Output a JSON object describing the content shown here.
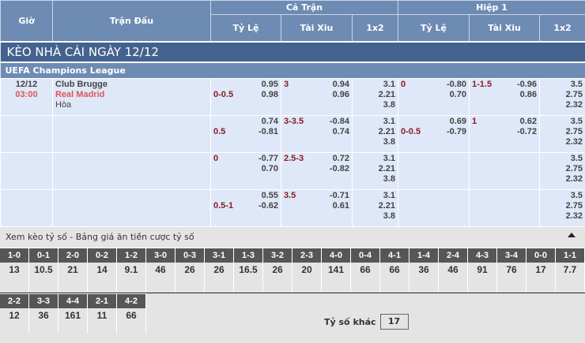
{
  "header": {
    "gio": "Giờ",
    "tran_dau": "Trận Đấu",
    "ca_tran": "Cả Trận",
    "hiep1": "Hiệp 1",
    "ty_le": "Tỷ Lệ",
    "tai_xiu": "Tài Xiu",
    "x12": "1x2"
  },
  "title": "KÈO NHÀ CÁI NGÀY 12/12",
  "league": "UEFA Champions League",
  "match": {
    "date": "12/12",
    "time": "03:00",
    "home": "Club Brugge",
    "away": "Real Madrid",
    "draw": "Hòa"
  },
  "rows": [
    {
      "hc": {
        "line": "0-0.5",
        "pos": 1,
        "odds": [
          "0.95",
          "0.98"
        ]
      },
      "ou": {
        "line": "3",
        "pos": 0,
        "odds": [
          "0.94",
          "0.96"
        ]
      },
      "x12": [
        "3.1",
        "2.21",
        "3.8"
      ],
      "h1hc": {
        "line": "0",
        "pos": 0,
        "odds": [
          "-0.80",
          "0.70"
        ]
      },
      "h1ou": {
        "line": "1-1.5",
        "pos": 0,
        "odds": [
          "-0.96",
          "0.86"
        ]
      },
      "h1x12": [
        "3.5",
        "2.75",
        "2.32"
      ]
    },
    {
      "hc": {
        "line": "0.5",
        "pos": 1,
        "odds": [
          "0.74",
          "-0.81"
        ]
      },
      "ou": {
        "line": "3-3.5",
        "pos": 0,
        "odds": [
          "-0.84",
          "0.74"
        ]
      },
      "x12": [
        "3.1",
        "2.21",
        "3.8"
      ],
      "h1hc": {
        "line": "0-0.5",
        "pos": 1,
        "odds": [
          "0.69",
          "-0.79"
        ]
      },
      "h1ou": {
        "line": "1",
        "pos": 0,
        "odds": [
          "0.62",
          "-0.72"
        ]
      },
      "h1x12": [
        "3.5",
        "2.75",
        "2.32"
      ]
    },
    {
      "hc": {
        "line": "0",
        "pos": 0,
        "odds": [
          "-0.77",
          "0.70"
        ]
      },
      "ou": {
        "line": "2.5-3",
        "pos": 0,
        "odds": [
          "0.72",
          "-0.82"
        ]
      },
      "x12": [
        "3.1",
        "2.21",
        "3.8"
      ],
      "h1hc": null,
      "h1ou": null,
      "h1x12": [
        "3.5",
        "2.75",
        "2.32"
      ]
    },
    {
      "hc": {
        "line": "0.5-1",
        "pos": 1,
        "odds": [
          "0.55",
          "-0.62"
        ]
      },
      "ou": {
        "line": "3.5",
        "pos": 0,
        "odds": [
          "-0.71",
          "0.61"
        ]
      },
      "x12": [
        "3.1",
        "2.21",
        "3.8"
      ],
      "h1hc": null,
      "h1ou": null,
      "h1x12": [
        "3.5",
        "2.75",
        "2.32"
      ]
    }
  ],
  "scores": {
    "heading": "Xem kèo tỷ số - Bảng giá ăn tiền cược tỷ số",
    "row1": [
      [
        "1-0",
        "13"
      ],
      [
        "0-1",
        "10.5"
      ],
      [
        "2-0",
        "21"
      ],
      [
        "0-2",
        "14"
      ],
      [
        "1-2",
        "9.1"
      ],
      [
        "3-0",
        "46"
      ],
      [
        "0-3",
        "26"
      ],
      [
        "3-1",
        "26"
      ],
      [
        "1-3",
        "16.5"
      ],
      [
        "3-2",
        "26"
      ],
      [
        "2-3",
        "20"
      ],
      [
        "4-0",
        "141"
      ],
      [
        "0-4",
        "66"
      ],
      [
        "4-1",
        "66"
      ],
      [
        "1-4",
        "36"
      ],
      [
        "2-4",
        "46"
      ],
      [
        "4-3",
        "91"
      ],
      [
        "3-4",
        "76"
      ],
      [
        "0-0",
        "17"
      ],
      [
        "1-1",
        "7.7"
      ]
    ],
    "row2": [
      [
        "2-2",
        "12"
      ],
      [
        "3-3",
        "36"
      ],
      [
        "4-4",
        "161"
      ],
      [
        "2-1",
        "11"
      ],
      [
        "4-2",
        "66"
      ]
    ],
    "other_label": "Tỷ số khác",
    "other_value": "17"
  }
}
